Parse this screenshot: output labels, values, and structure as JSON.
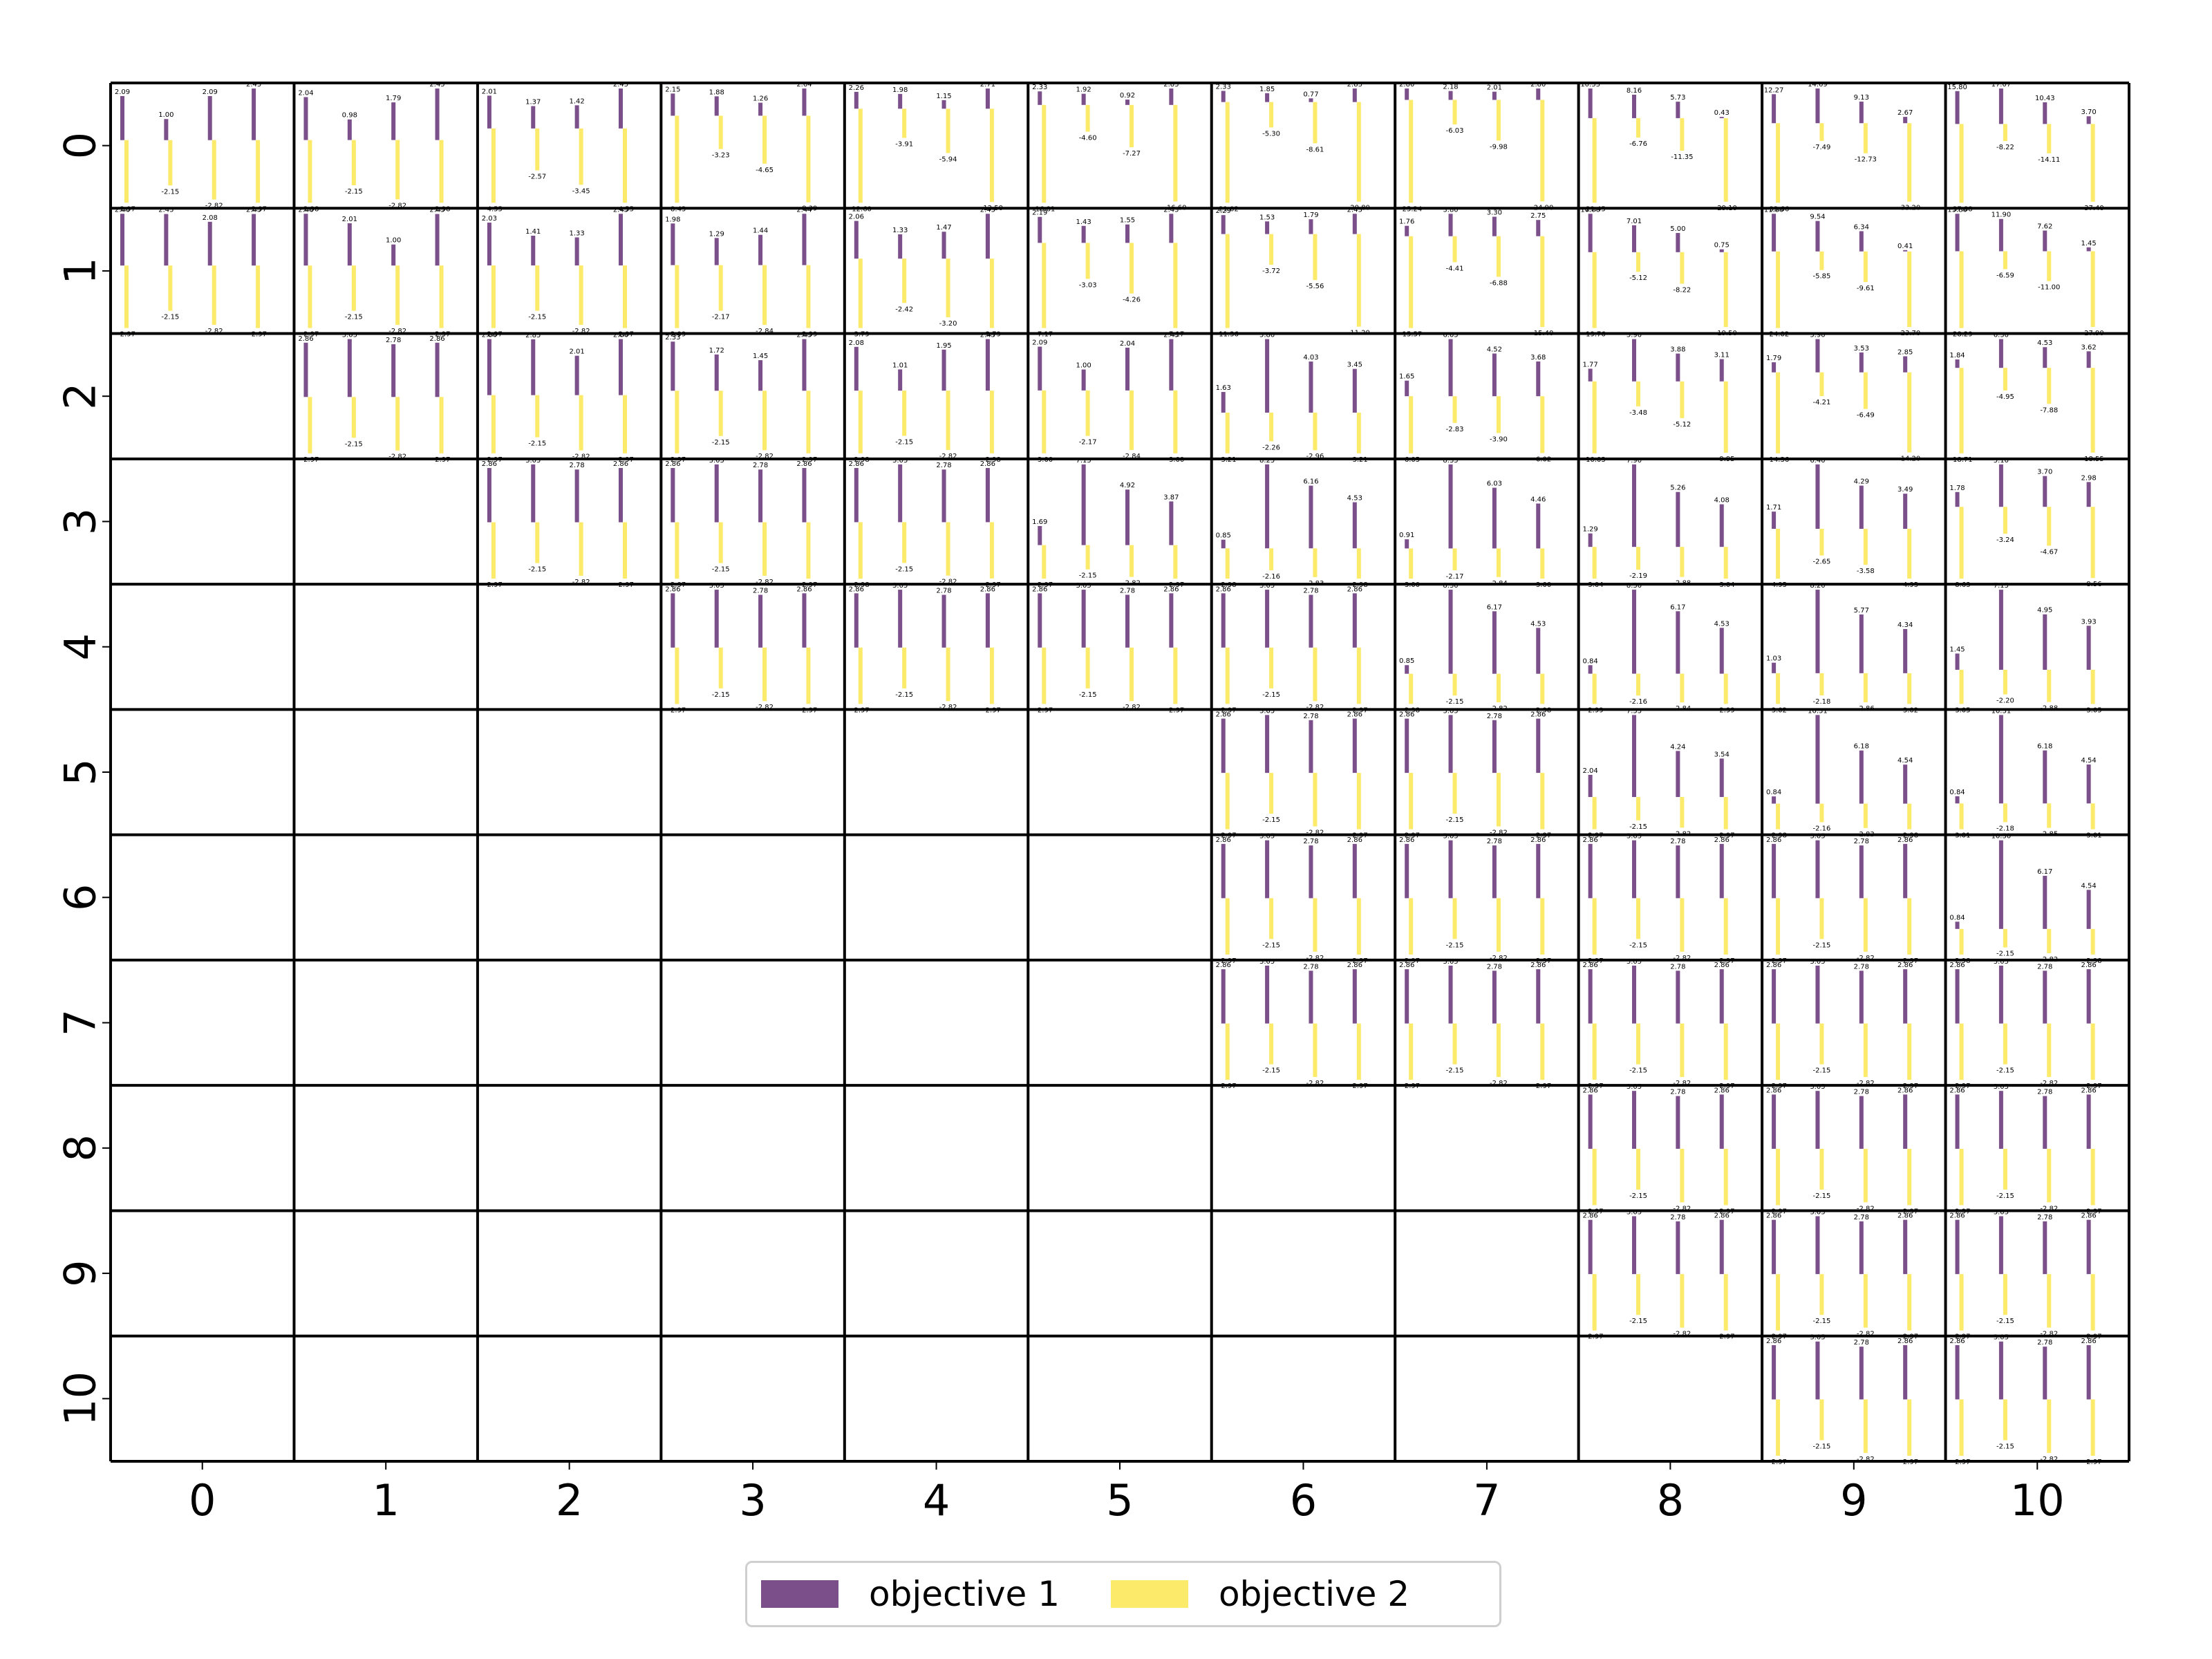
{
  "colors": {
    "objective_1": "#7b4f8a",
    "objective_2": "#fceb6a",
    "grid": "#000000"
  },
  "legend": {
    "placement": "lower center",
    "items": [
      "objective 1",
      "objective 2"
    ]
  },
  "chart_data": {
    "type": "bar",
    "layout": "11x11 upper-triangular grid of small bar charts",
    "row_ticks": [
      "0",
      "1",
      "2",
      "3",
      "4",
      "5",
      "6",
      "7",
      "8",
      "9",
      "10"
    ],
    "col_ticks": [
      "0",
      "1",
      "2",
      "3",
      "4",
      "5",
      "6",
      "7",
      "8",
      "9",
      "10"
    ],
    "series_names": [
      "objective 1",
      "objective 2"
    ],
    "cells": [
      {
        "row": 0,
        "col": 0,
        "obj1": [
          2.09,
          1.0,
          2.09,
          2.45
        ],
        "obj2": [
          -2.97,
          -2.15,
          -2.82,
          -2.97
        ]
      },
      {
        "row": 0,
        "col": 1,
        "obj1": [
          2.04,
          0.98,
          1.79,
          2.45
        ],
        "obj2": [
          -2.98,
          -2.15,
          -2.82,
          -2.98
        ]
      },
      {
        "row": 0,
        "col": 2,
        "obj1": [
          2.01,
          1.37,
          1.42,
          2.45
        ],
        "obj2": [
          -4.55,
          -2.57,
          -3.45,
          -4.55
        ]
      },
      {
        "row": 0,
        "col": 3,
        "obj1": [
          2.15,
          1.88,
          1.26,
          2.64
        ],
        "obj2": [
          -8.43,
          -3.23,
          -4.65,
          -8.39
        ]
      },
      {
        "row": 0,
        "col": 4,
        "obj1": [
          2.26,
          1.98,
          1.15,
          2.71
        ],
        "obj2": [
          -12.6,
          -3.91,
          -5.94,
          -12.5
        ]
      },
      {
        "row": 0,
        "col": 5,
        "obj1": [
          2.33,
          1.92,
          0.92,
          2.83
        ],
        "obj2": [
          -16.81,
          -4.6,
          -7.27,
          -16.6
        ]
      },
      {
        "row": 0,
        "col": 6,
        "obj1": [
          2.33,
          1.85,
          0.77,
          2.83
        ],
        "obj2": [
          -21.02,
          -5.3,
          -8.61,
          -20.8
        ]
      },
      {
        "row": 0,
        "col": 7,
        "obj1": [
          2.8,
          2.18,
          2.01,
          2.8
        ],
        "obj2": [
          -25.24,
          -6.03,
          -9.98,
          -24.9
        ]
      },
      {
        "row": 0,
        "col": 8,
        "obj1": [
          10.33,
          8.16,
          5.73,
          0.43
        ],
        "obj2": [
          -29.45,
          -6.76,
          -11.35,
          -29.1
        ]
      },
      {
        "row": 0,
        "col": 9,
        "obj1": [
          12.27,
          14.69,
          9.13,
          2.67
        ],
        "obj2": [
          -33.66,
          -7.49,
          -12.73,
          -33.2
        ]
      },
      {
        "row": 0,
        "col": 10,
        "obj1": [
          15.8,
          17.07,
          10.43,
          3.7
        ],
        "obj2": [
          -37.88,
          -8.22,
          -14.11,
          -37.4
        ]
      },
      {
        "row": 1,
        "col": 0,
        "obj1": [
          2.46,
          2.45,
          2.08,
          2.45
        ],
        "obj2": [
          -2.97,
          -2.15,
          -2.82,
          -2.97
        ]
      },
      {
        "row": 1,
        "col": 1,
        "obj1": [
          2.46,
          2.01,
          1.0,
          2.45
        ],
        "obj2": [
          -2.97,
          -2.15,
          -2.82,
          -2.97
        ]
      },
      {
        "row": 1,
        "col": 2,
        "obj1": [
          2.03,
          1.41,
          1.33,
          2.45
        ],
        "obj2": [
          -2.97,
          -2.15,
          -2.82,
          -2.97
        ]
      },
      {
        "row": 1,
        "col": 3,
        "obj1": [
          1.98,
          1.29,
          1.44,
          2.44
        ],
        "obj2": [
          -2.99,
          -2.17,
          -2.84,
          -2.99
        ]
      },
      {
        "row": 1,
        "col": 4,
        "obj1": [
          2.06,
          1.33,
          1.47,
          2.45
        ],
        "obj2": [
          -3.79,
          -2.42,
          -3.2,
          -3.79
        ]
      },
      {
        "row": 1,
        "col": 5,
        "obj1": [
          2.19,
          1.43,
          1.55,
          2.45
        ],
        "obj2": [
          -7.17,
          -3.03,
          -4.26,
          -7.17
        ]
      },
      {
        "row": 1,
        "col": 6,
        "obj1": [
          2.29,
          1.53,
          1.79,
          2.45
        ],
        "obj2": [
          -11.36,
          -3.72,
          -5.56,
          -11.2
        ]
      },
      {
        "row": 1,
        "col": 7,
        "obj1": [
          1.76,
          3.8,
          3.3,
          2.75
        ],
        "obj2": [
          -15.57,
          -4.41,
          -6.88,
          -15.4
        ]
      },
      {
        "row": 1,
        "col": 8,
        "obj1": [
          10.0,
          7.01,
          5.0,
          0.75
        ],
        "obj2": [
          -19.76,
          -5.12,
          -8.22,
          -19.5
        ]
      },
      {
        "row": 1,
        "col": 9,
        "obj1": [
          11.8,
          9.54,
          6.34,
          0.41
        ],
        "obj2": [
          -24.02,
          -5.85,
          -9.61,
          -23.7
        ]
      },
      {
        "row": 1,
        "col": 10,
        "obj1": [
          13.8,
          11.9,
          7.62,
          1.45
        ],
        "obj2": [
          -28.29,
          -6.59,
          -11.0,
          -27.9
        ]
      },
      {
        "row": 2,
        "col": 1,
        "obj1": [
          2.86,
          3.05,
          2.78,
          2.86
        ],
        "obj2": [
          -2.97,
          -2.15,
          -2.82,
          -2.97
        ]
      },
      {
        "row": 2,
        "col": 2,
        "obj1": [
          2.86,
          2.85,
          2.01,
          2.86
        ],
        "obj2": [
          -2.97,
          -2.15,
          -2.82,
          -2.97
        ]
      },
      {
        "row": 2,
        "col": 3,
        "obj1": [
          2.33,
          1.72,
          1.45,
          2.45
        ],
        "obj2": [
          -2.97,
          -2.15,
          -2.82,
          -2.97
        ]
      },
      {
        "row": 2,
        "col": 4,
        "obj1": [
          2.08,
          1.01,
          1.95,
          2.45
        ],
        "obj2": [
          -2.98,
          -2.15,
          -2.82,
          -2.98
        ]
      },
      {
        "row": 2,
        "col": 5,
        "obj1": [
          2.09,
          1.0,
          2.04,
          2.45
        ],
        "obj2": [
          -3.0,
          -2.17,
          -2.84,
          -3.0
        ]
      },
      {
        "row": 2,
        "col": 6,
        "obj1": [
          1.63,
          5.8,
          4.03,
          3.45
        ],
        "obj2": [
          -3.21,
          -2.26,
          -2.96,
          -3.21
        ]
      },
      {
        "row": 2,
        "col": 7,
        "obj1": [
          1.65,
          6.05,
          4.52,
          3.68
        ],
        "obj2": [
          -6.05,
          -2.83,
          -3.9,
          -6.02
        ]
      },
      {
        "row": 2,
        "col": 8,
        "obj1": [
          1.77,
          5.9,
          3.88,
          3.11
        ],
        "obj2": [
          -10.03,
          -3.48,
          -5.12,
          -9.95
        ]
      },
      {
        "row": 2,
        "col": 9,
        "obj1": [
          1.79,
          5.9,
          3.53,
          2.85
        ],
        "obj2": [
          -14.36,
          -4.21,
          -6.49,
          -14.2
        ]
      },
      {
        "row": 2,
        "col": 10,
        "obj1": [
          1.84,
          6.3,
          4.53,
          3.62
        ],
        "obj2": [
          -18.71,
          -4.95,
          -7.88,
          -18.55
        ]
      },
      {
        "row": 3,
        "col": 2,
        "obj1": [
          2.86,
          3.05,
          2.78,
          2.86
        ],
        "obj2": [
          -2.97,
          -2.15,
          -2.82,
          -2.97
        ]
      },
      {
        "row": 3,
        "col": 3,
        "obj1": [
          2.86,
          3.05,
          2.78,
          2.86
        ],
        "obj2": [
          -2.97,
          -2.15,
          -2.82,
          -2.97
        ]
      },
      {
        "row": 3,
        "col": 4,
        "obj1": [
          2.86,
          3.05,
          2.78,
          2.86
        ],
        "obj2": [
          -2.98,
          -2.15,
          -2.82,
          -2.97
        ]
      },
      {
        "row": 3,
        "col": 5,
        "obj1": [
          1.69,
          7.15,
          4.92,
          3.87
        ],
        "obj2": [
          -2.97,
          -2.15,
          -2.82,
          -2.97
        ]
      },
      {
        "row": 3,
        "col": 6,
        "obj1": [
          0.85,
          8.25,
          6.16,
          4.53
        ],
        "obj2": [
          -2.98,
          -2.16,
          -2.83,
          -2.98
        ]
      },
      {
        "row": 3,
        "col": 7,
        "obj1": [
          0.91,
          8.35,
          6.03,
          4.46
        ],
        "obj2": [
          -3.0,
          -2.17,
          -2.84,
          -3.0
        ]
      },
      {
        "row": 3,
        "col": 8,
        "obj1": [
          1.29,
          7.9,
          5.26,
          4.08
        ],
        "obj2": [
          -3.04,
          -2.19,
          -2.88,
          -3.04
        ]
      },
      {
        "row": 3,
        "col": 9,
        "obj1": [
          1.71,
          6.4,
          4.29,
          3.49
        ],
        "obj2": [
          -4.95,
          -2.65,
          -3.58,
          -4.95
        ]
      },
      {
        "row": 3,
        "col": 10,
        "obj1": [
          1.78,
          5.1,
          3.7,
          2.98
        ],
        "obj2": [
          -8.63,
          -3.24,
          -4.67,
          -8.56
        ]
      },
      {
        "row": 4,
        "col": 3,
        "obj1": [
          2.86,
          3.05,
          2.78,
          2.86
        ],
        "obj2": [
          -2.97,
          -2.15,
          -2.82,
          -2.97
        ]
      },
      {
        "row": 4,
        "col": 4,
        "obj1": [
          2.86,
          3.05,
          2.78,
          2.86
        ],
        "obj2": [
          -2.97,
          -2.15,
          -2.82,
          -2.97
        ]
      },
      {
        "row": 4,
        "col": 5,
        "obj1": [
          2.86,
          3.05,
          2.78,
          2.86
        ],
        "obj2": [
          -2.97,
          -2.15,
          -2.82,
          -2.97
        ]
      },
      {
        "row": 4,
        "col": 6,
        "obj1": [
          2.86,
          3.05,
          2.78,
          2.86
        ],
        "obj2": [
          -2.97,
          -2.15,
          -2.82,
          -2.97
        ]
      },
      {
        "row": 4,
        "col": 7,
        "obj1": [
          0.85,
          8.3,
          6.17,
          4.53
        ],
        "obj2": [
          -2.98,
          -2.15,
          -2.82,
          -2.98
        ]
      },
      {
        "row": 4,
        "col": 8,
        "obj1": [
          0.84,
          8.3,
          6.17,
          4.53
        ],
        "obj2": [
          -2.99,
          -2.16,
          -2.84,
          -2.99
        ]
      },
      {
        "row": 4,
        "col": 9,
        "obj1": [
          1.03,
          8.2,
          5.77,
          4.34
        ],
        "obj2": [
          -3.02,
          -2.18,
          -2.86,
          -3.02
        ]
      },
      {
        "row": 4,
        "col": 10,
        "obj1": [
          1.45,
          7.15,
          4.95,
          3.93
        ],
        "obj2": [
          -3.05,
          -2.2,
          -2.88,
          -3.05
        ]
      },
      {
        "row": 5,
        "col": 6,
        "obj1": [
          2.86,
          3.05,
          2.78,
          2.86
        ],
        "obj2": [
          -2.97,
          -2.15,
          -2.82,
          -2.97
        ]
      },
      {
        "row": 5,
        "col": 7,
        "obj1": [
          2.86,
          3.05,
          2.78,
          2.86
        ],
        "obj2": [
          -2.97,
          -2.15,
          -2.82,
          -2.97
        ]
      },
      {
        "row": 5,
        "col": 8,
        "obj1": [
          2.04,
          7.55,
          4.24,
          3.54
        ],
        "obj2": [
          -2.97,
          -2.15,
          -2.82,
          -2.97
        ]
      },
      {
        "row": 5,
        "col": 9,
        "obj1": [
          0.84,
          10.31,
          6.18,
          4.54
        ],
        "obj2": [
          -2.98,
          -2.16,
          -2.83,
          -2.98
        ]
      },
      {
        "row": 5,
        "col": 10,
        "obj1": [
          0.84,
          10.31,
          6.18,
          4.54
        ],
        "obj2": [
          -3.01,
          -2.18,
          -2.85,
          -3.01
        ]
      },
      {
        "row": 6,
        "col": 6,
        "obj1": [
          2.86,
          3.05,
          2.78,
          2.86
        ],
        "obj2": [
          -2.97,
          -2.15,
          -2.82,
          -2.97
        ]
      },
      {
        "row": 6,
        "col": 7,
        "obj1": [
          2.86,
          3.05,
          2.78,
          2.86
        ],
        "obj2": [
          -2.97,
          -2.15,
          -2.82,
          -2.97
        ]
      },
      {
        "row": 6,
        "col": 8,
        "obj1": [
          2.86,
          3.05,
          2.78,
          2.86
        ],
        "obj2": [
          -2.97,
          -2.15,
          -2.82,
          -2.97
        ]
      },
      {
        "row": 6,
        "col": 9,
        "obj1": [
          2.86,
          3.05,
          2.78,
          2.86
        ],
        "obj2": [
          -2.97,
          -2.15,
          -2.82,
          -2.97
        ]
      },
      {
        "row": 6,
        "col": 10,
        "obj1": [
          0.84,
          10.3,
          6.17,
          4.54
        ],
        "obj2": [
          -2.98,
          -2.15,
          -2.82,
          -2.98
        ]
      },
      {
        "row": 7,
        "col": 6,
        "obj1": [
          2.86,
          3.05,
          2.78,
          2.86
        ],
        "obj2": [
          -2.97,
          -2.15,
          -2.82,
          -2.97
        ]
      },
      {
        "row": 7,
        "col": 7,
        "obj1": [
          2.86,
          3.05,
          2.78,
          2.86
        ],
        "obj2": [
          -2.97,
          -2.15,
          -2.82,
          -2.97
        ]
      },
      {
        "row": 7,
        "col": 8,
        "obj1": [
          2.86,
          3.05,
          2.78,
          2.86
        ],
        "obj2": [
          -2.97,
          -2.15,
          -2.82,
          -2.97
        ]
      },
      {
        "row": 7,
        "col": 9,
        "obj1": [
          2.86,
          3.05,
          2.78,
          2.86
        ],
        "obj2": [
          -2.97,
          -2.15,
          -2.82,
          -2.97
        ]
      },
      {
        "row": 7,
        "col": 10,
        "obj1": [
          2.86,
          3.05,
          2.78,
          2.86
        ],
        "obj2": [
          -2.97,
          -2.15,
          -2.82,
          -2.97
        ]
      },
      {
        "row": 8,
        "col": 8,
        "obj1": [
          2.86,
          3.05,
          2.78,
          2.86
        ],
        "obj2": [
          -2.97,
          -2.15,
          -2.82,
          -2.97
        ]
      },
      {
        "row": 8,
        "col": 9,
        "obj1": [
          2.86,
          3.05,
          2.78,
          2.86
        ],
        "obj2": [
          -2.97,
          -2.15,
          -2.82,
          -2.97
        ]
      },
      {
        "row": 8,
        "col": 10,
        "obj1": [
          2.86,
          3.05,
          2.78,
          2.86
        ],
        "obj2": [
          -2.97,
          -2.15,
          -2.82,
          -2.97
        ]
      },
      {
        "row": 9,
        "col": 8,
        "obj1": [
          2.86,
          3.05,
          2.78,
          2.86
        ],
        "obj2": [
          -2.97,
          -2.15,
          -2.82,
          -2.97
        ]
      },
      {
        "row": 9,
        "col": 9,
        "obj1": [
          2.86,
          3.05,
          2.78,
          2.86
        ],
        "obj2": [
          -2.97,
          -2.15,
          -2.82,
          -2.97
        ]
      },
      {
        "row": 9,
        "col": 10,
        "obj1": [
          2.86,
          3.05,
          2.78,
          2.86
        ],
        "obj2": [
          -2.97,
          -2.15,
          -2.82,
          -2.97
        ]
      },
      {
        "row": 10,
        "col": 9,
        "obj1": [
          2.86,
          3.05,
          2.78,
          2.86
        ],
        "obj2": [
          -2.97,
          -2.15,
          -2.82,
          -2.97
        ]
      },
      {
        "row": 10,
        "col": 10,
        "obj1": [
          2.86,
          3.05,
          2.78,
          2.86
        ],
        "obj2": [
          -2.97,
          -2.15,
          -2.82,
          -2.97
        ]
      }
    ]
  }
}
